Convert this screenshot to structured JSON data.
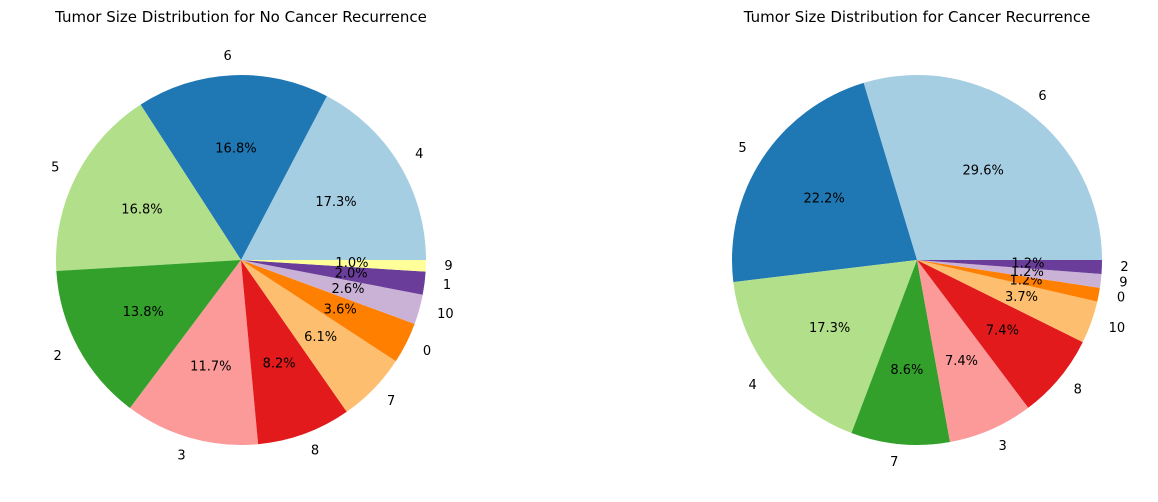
{
  "chart_data": [
    {
      "type": "pie",
      "title": "Tumor Size Distribution for No Cancer Recurrence",
      "start_angle_deg": 0,
      "direction": "counterclockwise",
      "slices": [
        {
          "label": "4",
          "value": 17.3,
          "pct_label": "17.3%",
          "color": "#a6cee3"
        },
        {
          "label": "6",
          "value": 16.8,
          "pct_label": "16.8%",
          "color": "#1f78b4"
        },
        {
          "label": "5",
          "value": 16.8,
          "pct_label": "16.8%",
          "color": "#b2df8a"
        },
        {
          "label": "2",
          "value": 13.8,
          "pct_label": "13.8%",
          "color": "#33a02c"
        },
        {
          "label": "3",
          "value": 11.7,
          "pct_label": "11.7%",
          "color": "#fb9a99"
        },
        {
          "label": "8",
          "value": 8.2,
          "pct_label": "8.2%",
          "color": "#e31a1c"
        },
        {
          "label": "7",
          "value": 6.1,
          "pct_label": "6.1%",
          "color": "#fdbf6f"
        },
        {
          "label": "0",
          "value": 3.6,
          "pct_label": "3.6%",
          "color": "#ff7f00"
        },
        {
          "label": "10",
          "value": 2.6,
          "pct_label": "2.6%",
          "color": "#cab2d6"
        },
        {
          "label": "1",
          "value": 2.0,
          "pct_label": "2.0%",
          "color": "#6a3d9a"
        },
        {
          "label": "9",
          "value": 1.0,
          "pct_label": "1.0%",
          "color": "#ffff99"
        }
      ]
    },
    {
      "type": "pie",
      "title": "Tumor Size Distribution for Cancer Recurrence",
      "start_angle_deg": 0,
      "direction": "counterclockwise",
      "slices": [
        {
          "label": "6",
          "value": 29.6,
          "pct_label": "29.6%",
          "color": "#a6cee3"
        },
        {
          "label": "5",
          "value": 22.2,
          "pct_label": "22.2%",
          "color": "#1f78b4"
        },
        {
          "label": "4",
          "value": 17.3,
          "pct_label": "17.3%",
          "color": "#b2df8a"
        },
        {
          "label": "7",
          "value": 8.6,
          "pct_label": "8.6%",
          "color": "#33a02c"
        },
        {
          "label": "3",
          "value": 7.4,
          "pct_label": "7.4%",
          "color": "#fb9a99"
        },
        {
          "label": "8",
          "value": 7.4,
          "pct_label": "7.4%",
          "color": "#e31a1c"
        },
        {
          "label": "10",
          "value": 3.7,
          "pct_label": "3.7%",
          "color": "#fdbf6f"
        },
        {
          "label": "0",
          "value": 1.2,
          "pct_label": "1.2%",
          "color": "#ff7f00"
        },
        {
          "label": "9",
          "value": 1.2,
          "pct_label": "1.2%",
          "color": "#cab2d6"
        },
        {
          "label": "2",
          "value": 1.2,
          "pct_label": "1.2%",
          "color": "#6a3d9a"
        }
      ]
    }
  ]
}
